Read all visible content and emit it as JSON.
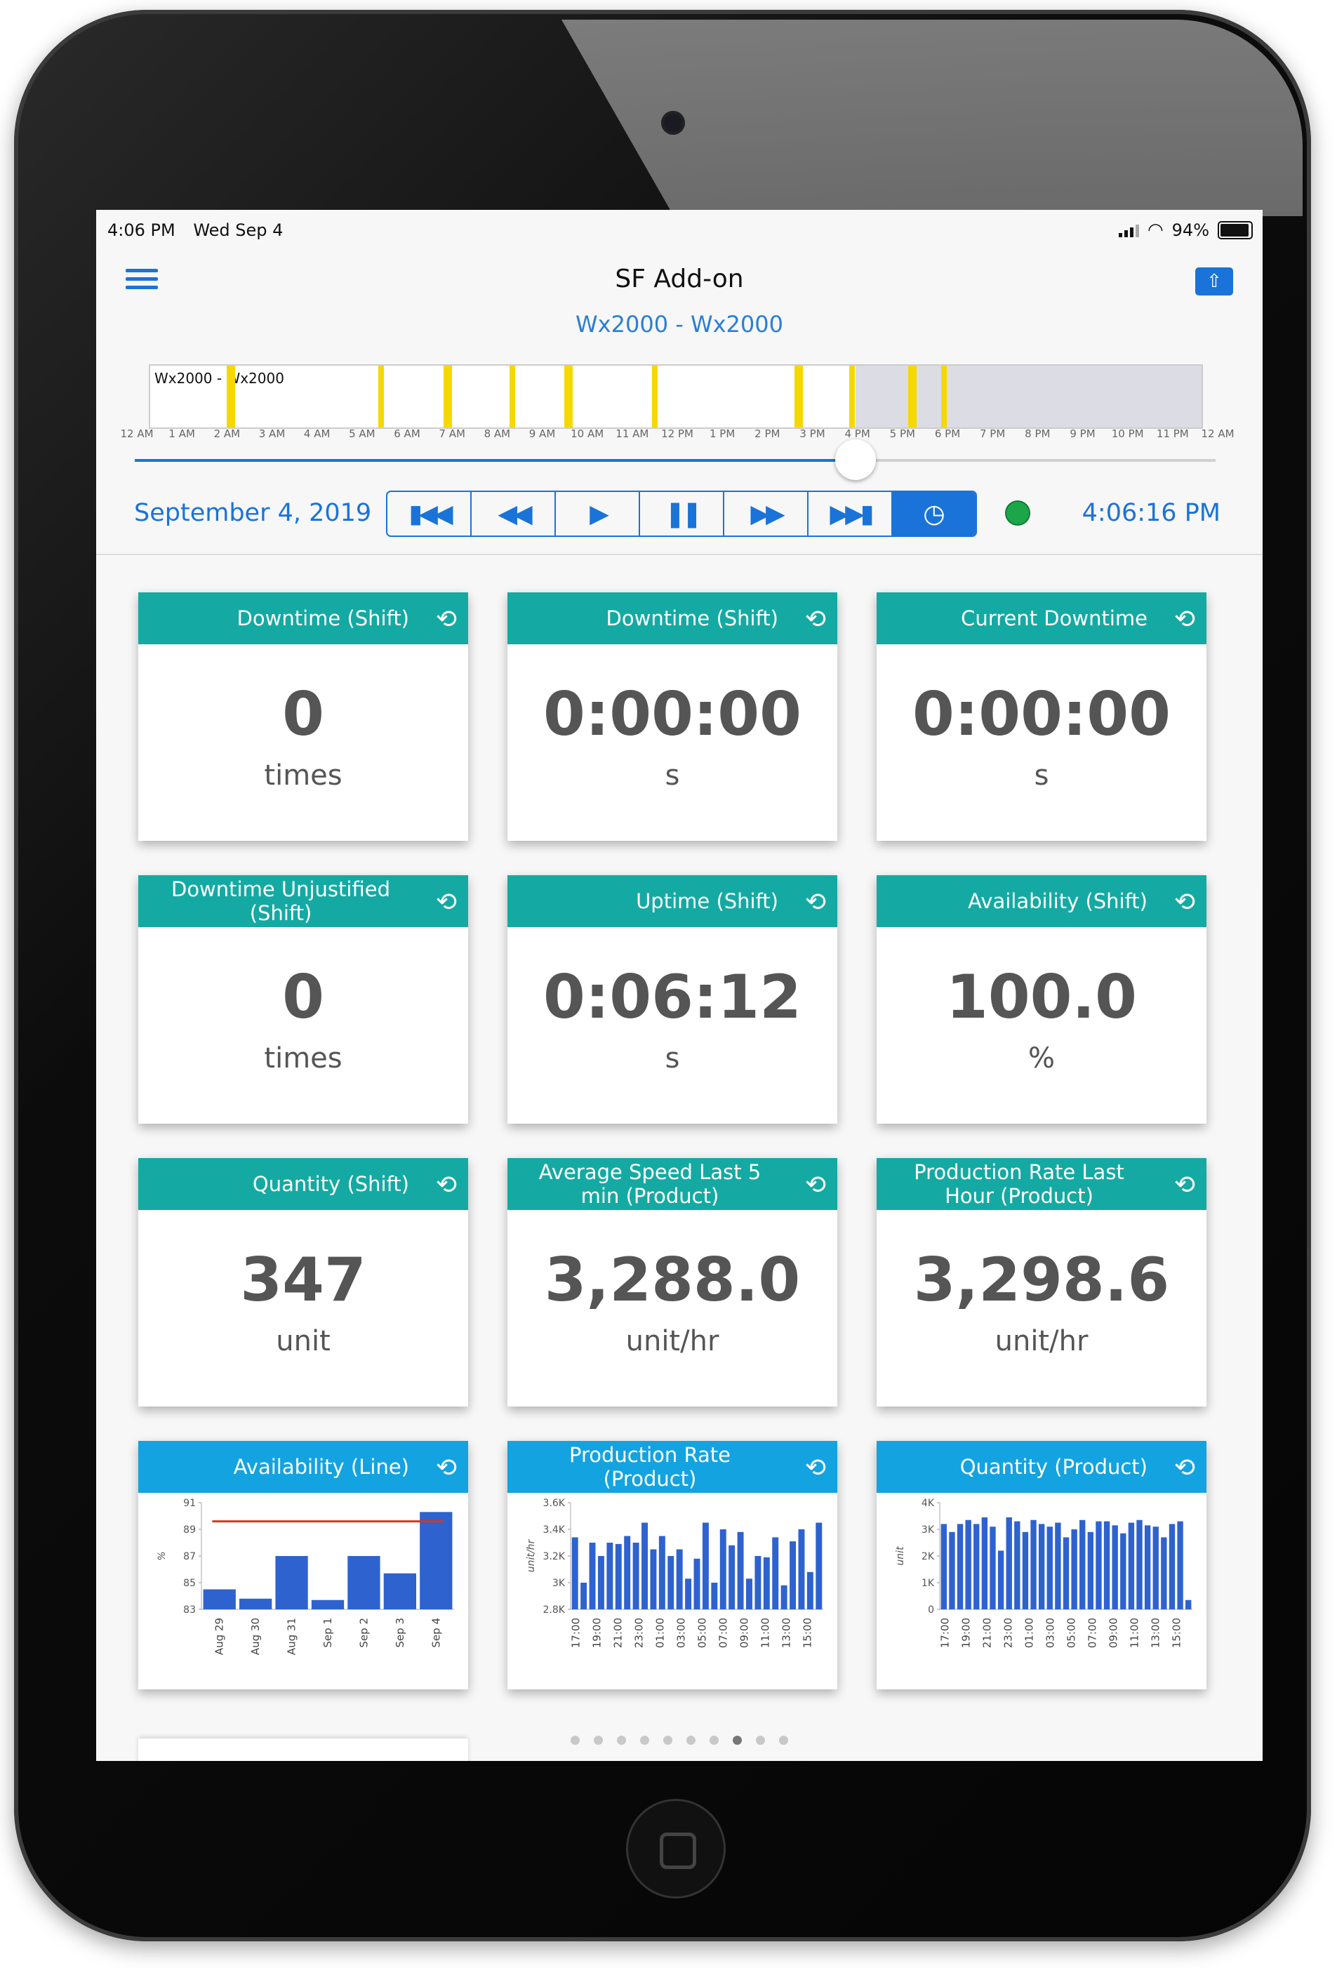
{
  "status": {
    "time": "4:06 PM",
    "date": "Wed Sep 4",
    "battery": "94%"
  },
  "nav": {
    "title": "SF  Add-on"
  },
  "line_title": "Wx2000 - Wx2000",
  "timeline": {
    "label": "Wx2000 - Wx2000",
    "ticks": [
      "12 AM",
      "1 AM",
      "2 AM",
      "3 AM",
      "4 AM",
      "5 AM",
      "6 AM",
      "7 AM",
      "8 AM",
      "9 AM",
      "10 AM",
      "11 AM",
      "12 PM",
      "1 PM",
      "2 PM",
      "3 PM",
      "4 PM",
      "5 PM",
      "6 PM",
      "7 PM",
      "8 PM",
      "9 PM",
      "10 PM",
      "11 PM",
      "12 AM"
    ],
    "downtime_marks_hours": [
      1.75,
      5.2,
      6.7,
      8.2,
      9.45,
      11.45,
      14.7,
      15.95,
      17.3,
      18.05
    ],
    "current_hour": 16.1,
    "mark_color": "#f5d800"
  },
  "controls": {
    "date": "September 4, 2019",
    "time": "4:06:16 PM",
    "buttons": [
      {
        "name": "skip-to-start-button",
        "glyph": "▮◀◀"
      },
      {
        "name": "rewind-button",
        "glyph": "◀◀"
      },
      {
        "name": "play-button",
        "glyph": "▶"
      },
      {
        "name": "pause-button",
        "glyph": "❚❚"
      },
      {
        "name": "fast-forward-button",
        "glyph": "▶▶"
      },
      {
        "name": "skip-to-end-button",
        "glyph": "▶▶▮"
      },
      {
        "name": "clock-button",
        "glyph": "◷"
      }
    ],
    "live_color": "#1ca64a"
  },
  "colors": {
    "accent": "#1a73d8",
    "teal_header": "#14aaa3",
    "blue_header": "#13a3e0",
    "bar": "#2e62cf",
    "target_line": "#d23a1e"
  },
  "cards": [
    {
      "title": "Downtime (Shift)",
      "value": "0",
      "unit": "times"
    },
    {
      "title": "Downtime (Shift)",
      "value": "0:00:00",
      "unit": "s"
    },
    {
      "title": "Current Downtime",
      "value": "0:00:00",
      "unit": "s"
    },
    {
      "title": "Downtime Unjustified (Shift)",
      "value": "0",
      "unit": "times"
    },
    {
      "title": "Uptime (Shift)",
      "value": "0:06:12",
      "unit": "s"
    },
    {
      "title": "Availability (Shift)",
      "value": "100.0",
      "unit": "%"
    },
    {
      "title": "Quantity (Shift)",
      "value": "347",
      "unit": "unit"
    },
    {
      "title": "Average Speed Last 5 min (Product)",
      "value": "3,288.0",
      "unit": "unit/hr"
    },
    {
      "title": "Production Rate Last Hour (Product)",
      "value": "3,298.6",
      "unit": "unit/hr"
    }
  ],
  "chart_cards": [
    {
      "title": "Availability (Line)"
    },
    {
      "title": "Production Rate (Product)"
    },
    {
      "title": "Quantity (Product)"
    }
  ],
  "chart_data": [
    {
      "type": "bar",
      "title": "Availability (Line)",
      "ylabel": "%",
      "xlabel": "",
      "categories": [
        "Aug 29",
        "Aug 30",
        "Aug 31",
        "Sep 1",
        "Sep 2",
        "Sep 3",
        "Sep 4"
      ],
      "values": [
        84.5,
        83.8,
        87,
        83.7,
        87,
        85.7,
        90.3
      ],
      "ylim": [
        83,
        91
      ],
      "yticks": [
        "83",
        "85",
        "87",
        "89",
        "91"
      ],
      "target": 89.6
    },
    {
      "type": "bar",
      "title": "Production Rate (Product)",
      "ylabel": "unit/hr",
      "xlabel": "",
      "x_ticks": [
        "17:00",
        "19:00",
        "21:00",
        "23:00",
        "01:00",
        "03:00",
        "05:00",
        "07:00",
        "09:00",
        "11:00",
        "13:00",
        "15:00"
      ],
      "values": [
        3340,
        3000,
        3300,
        3200,
        3300,
        3290,
        3350,
        3300,
        3450,
        3250,
        3350,
        3200,
        3250,
        3030,
        3180,
        3450,
        3000,
        3400,
        3280,
        3380,
        3030,
        3200,
        3190,
        3340,
        2980,
        3310,
        3400,
        3080,
        3450
      ],
      "ylim": [
        2800,
        3600
      ],
      "yticks": [
        "2.8K",
        "3K",
        "3.2K",
        "3.4K",
        "3.6K"
      ]
    },
    {
      "type": "bar",
      "title": "Quantity (Product)",
      "ylabel": "unit",
      "xlabel": "",
      "x_ticks": [
        "17:00",
        "19:00",
        "21:00",
        "23:00",
        "01:00",
        "03:00",
        "05:00",
        "07:00",
        "09:00",
        "11:00",
        "13:00",
        "15:00"
      ],
      "values": [
        3200,
        2900,
        3200,
        3350,
        3200,
        3450,
        3100,
        2200,
        3450,
        3300,
        2900,
        3350,
        3200,
        3100,
        3250,
        2700,
        3000,
        3350,
        2900,
        3300,
        3300,
        3150,
        2850,
        3250,
        3350,
        3150,
        3100,
        2700,
        3200,
        3300,
        350
      ],
      "ylim": [
        0,
        4000
      ],
      "yticks": [
        "0",
        "1K",
        "2K",
        "3K",
        "4K"
      ]
    }
  ],
  "pager": {
    "count": 10,
    "active": 7
  }
}
